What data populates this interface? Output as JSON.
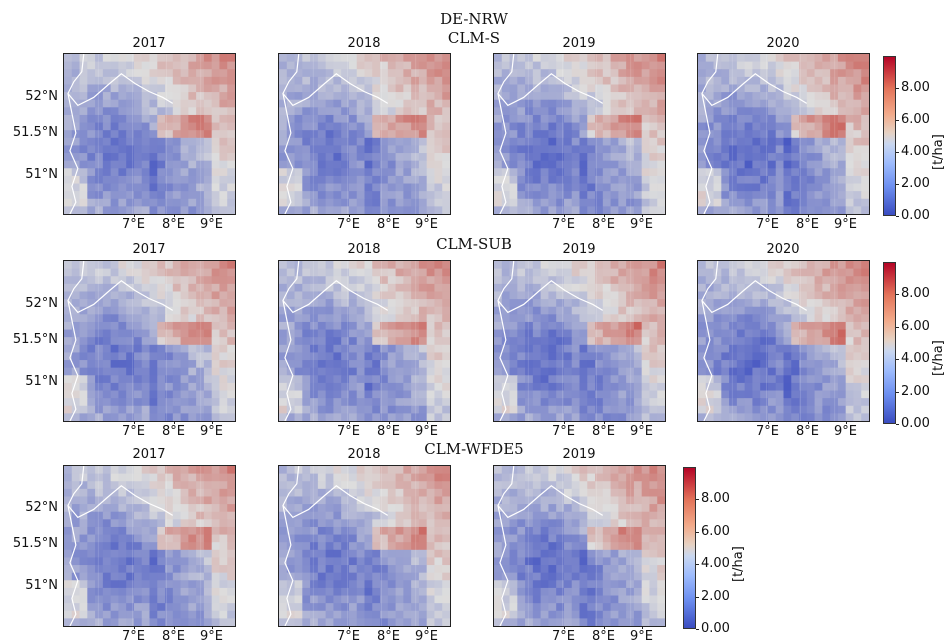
{
  "figure_title": "DE-NRW",
  "rows": [
    {
      "label": "CLM-S",
      "years": [
        "2017",
        "2018",
        "2019",
        "2020"
      ]
    },
    {
      "label": "CLM-SUB",
      "years": [
        "2017",
        "2018",
        "2019",
        "2020"
      ]
    },
    {
      "label": "CLM-WFDE5",
      "years": [
        "2017",
        "2018",
        "2019"
      ]
    }
  ],
  "lat_labels": [
    "52°N",
    "51.5°N",
    "51°N"
  ],
  "lon_labels": [
    "7°E",
    "8°E",
    "9°E"
  ],
  "colorbar": {
    "ticks": [
      "8.00",
      "6.00",
      "4.00",
      "2.00",
      "0.00"
    ],
    "unit": "[t/ha]",
    "colormap": "coolwarm",
    "range": [
      0,
      10
    ]
  },
  "colors": {
    "low": "#3a4cc0",
    "mid": "#dddddd",
    "high": "#b40426",
    "border": "#ffffff"
  }
}
